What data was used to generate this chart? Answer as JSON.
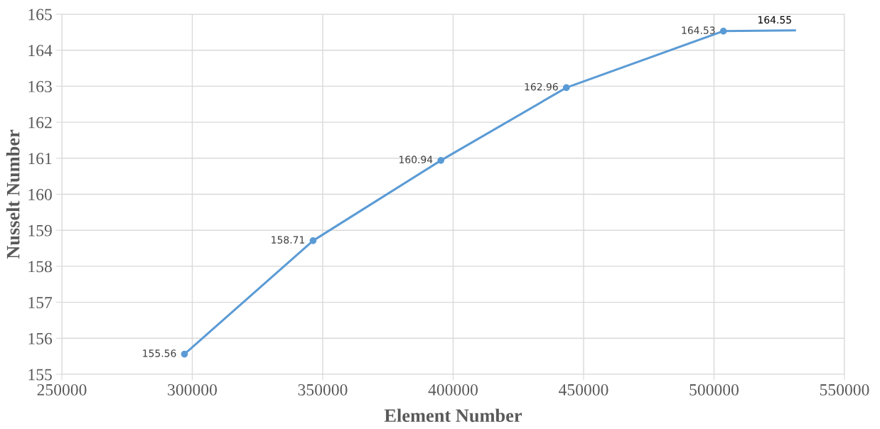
{
  "chart_data": {
    "type": "line",
    "xlabel": "Element Number",
    "ylabel": "Nusselt Number",
    "xlim": [
      250000,
      550000
    ],
    "xticks": [
      250000,
      300000,
      350000,
      400000,
      450000,
      500000,
      550000
    ],
    "ylim": [
      155,
      165
    ],
    "yticks": [
      155,
      156,
      157,
      158,
      159,
      160,
      161,
      162,
      163,
      164,
      165
    ],
    "grid": true,
    "line_style": "solid",
    "series": [
      {
        "color": "#5b9bd5",
        "marker": "circle",
        "x": [
          297000,
          346300,
          395300,
          443400,
          503600
        ],
        "values": [
          155.56,
          158.71,
          160.94,
          162.96,
          164.53
        ],
        "value_labels": [
          "155.56",
          "158.71",
          "160.94",
          "162.96",
          "164.53"
        ]
      },
      {
        "color": "#5b9bd5",
        "marker": "none",
        "x": [
          503600,
          531000
        ],
        "values": [
          164.53,
          164.55
        ],
        "value_labels": [
          null,
          "164.55"
        ]
      }
    ]
  }
}
